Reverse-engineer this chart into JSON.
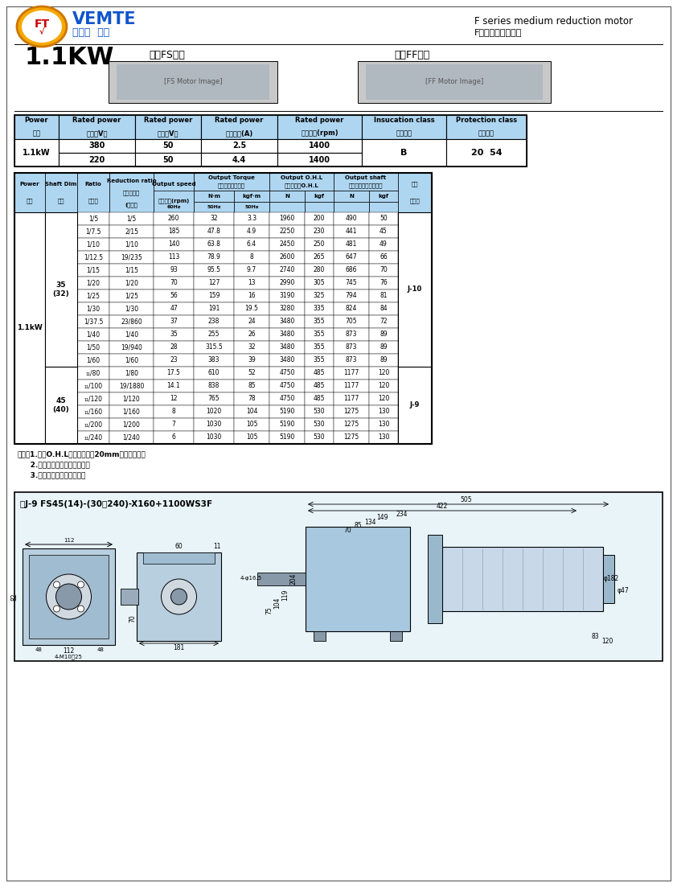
{
  "title_en": "F series medium reduction motor",
  "title_cn": "F系列中型減速電機",
  "power_label": "1.1KW",
  "series1": "中空FS系列",
  "series2": "中實FF系列",
  "bg_color": "#aed6f1",
  "white": "#ffffff",
  "black": "#000000",
  "table1_headers": [
    "Power\n功率",
    "Rated power\n電壓（V）",
    "Rated power\n頻率（V）",
    "Rated power\n額定電流(A)",
    "Rated power\n額定轉速(rpm)",
    "Insucation class\n絕緣等級",
    "Protection class\n防護等級"
  ],
  "table1_row1": [
    "1.1kW",
    "380",
    "50",
    "2.5",
    "1400",
    "B",
    "20  54"
  ],
  "table1_row2": [
    "",
    "220",
    "50",
    "4.4",
    "1400",
    "",
    ""
  ],
  "data_rows": [
    [
      "1/5",
      "1/5",
      "260",
      "32",
      "3.3",
      "1960",
      "200",
      "490",
      "50"
    ],
    [
      "1/7.5",
      "2/15",
      "185",
      "47.8",
      "4.9",
      "2250",
      "230",
      "441",
      "45"
    ],
    [
      "1/10",
      "1/10",
      "140",
      "63.8",
      "6.4",
      "2450",
      "250",
      "481",
      "49"
    ],
    [
      "1/12.5",
      "19/235",
      "113",
      "78.9",
      "8",
      "2600",
      "265",
      "647",
      "66"
    ],
    [
      "1/15",
      "1/15",
      "93",
      "95.5",
      "9.7",
      "2740",
      "280",
      "686",
      "70"
    ],
    [
      "1/20",
      "1/20",
      "70",
      "127",
      "13",
      "2990",
      "305",
      "745",
      "76"
    ],
    [
      "1/25",
      "1/25",
      "56",
      "159",
      "16",
      "3190",
      "325",
      "794",
      "81"
    ],
    [
      "1/30",
      "1/30",
      "47",
      "191",
      "19.5",
      "3280",
      "335",
      "824",
      "84"
    ],
    [
      "1/37.5",
      "23/860",
      "37",
      "238",
      "24",
      "3480",
      "355",
      "705",
      "72"
    ],
    [
      "1/40",
      "1/40",
      "35",
      "255",
      "26",
      "3480",
      "355",
      "873",
      "89"
    ],
    [
      "1/50",
      "19/940",
      "28",
      "315.5",
      "32",
      "3480",
      "355",
      "873",
      "89"
    ],
    [
      "1/60",
      "1/60",
      "23",
      "383",
      "39",
      "3480",
      "355",
      "873",
      "89"
    ],
    [
      "₁₁/80",
      "1/80",
      "17.5",
      "610",
      "52",
      "4750",
      "485",
      "1177",
      "120"
    ],
    [
      "₁₁/100",
      "19/1880",
      "14.1",
      "838",
      "85",
      "4750",
      "485",
      "1177",
      "120"
    ],
    [
      "₁₁/120",
      "1/120",
      "12",
      "765",
      "78",
      "4750",
      "485",
      "1177",
      "120"
    ],
    [
      "₁₁/160",
      "1/160",
      "8",
      "1020",
      "104",
      "5190",
      "530",
      "1275",
      "130"
    ],
    [
      "₁₁/200",
      "1/200",
      "7",
      "1030",
      "105",
      "5190",
      "530",
      "1275",
      "130"
    ],
    [
      "₁₁/240",
      "1/240",
      "6",
      "1030",
      "105",
      "5190",
      "530",
      "1275",
      "130"
    ]
  ],
  "notes": [
    "（注）1.查將O.H.L當輸出軸端面20mm位置的數值。",
    "     2.深槽配高傳矩力受限機型。",
    "     3.括號（）屬實心軸軸徑。"
  ],
  "diagram_label": "圖J-9 FS45(14)-(30～240)-X160+1100WS3F"
}
